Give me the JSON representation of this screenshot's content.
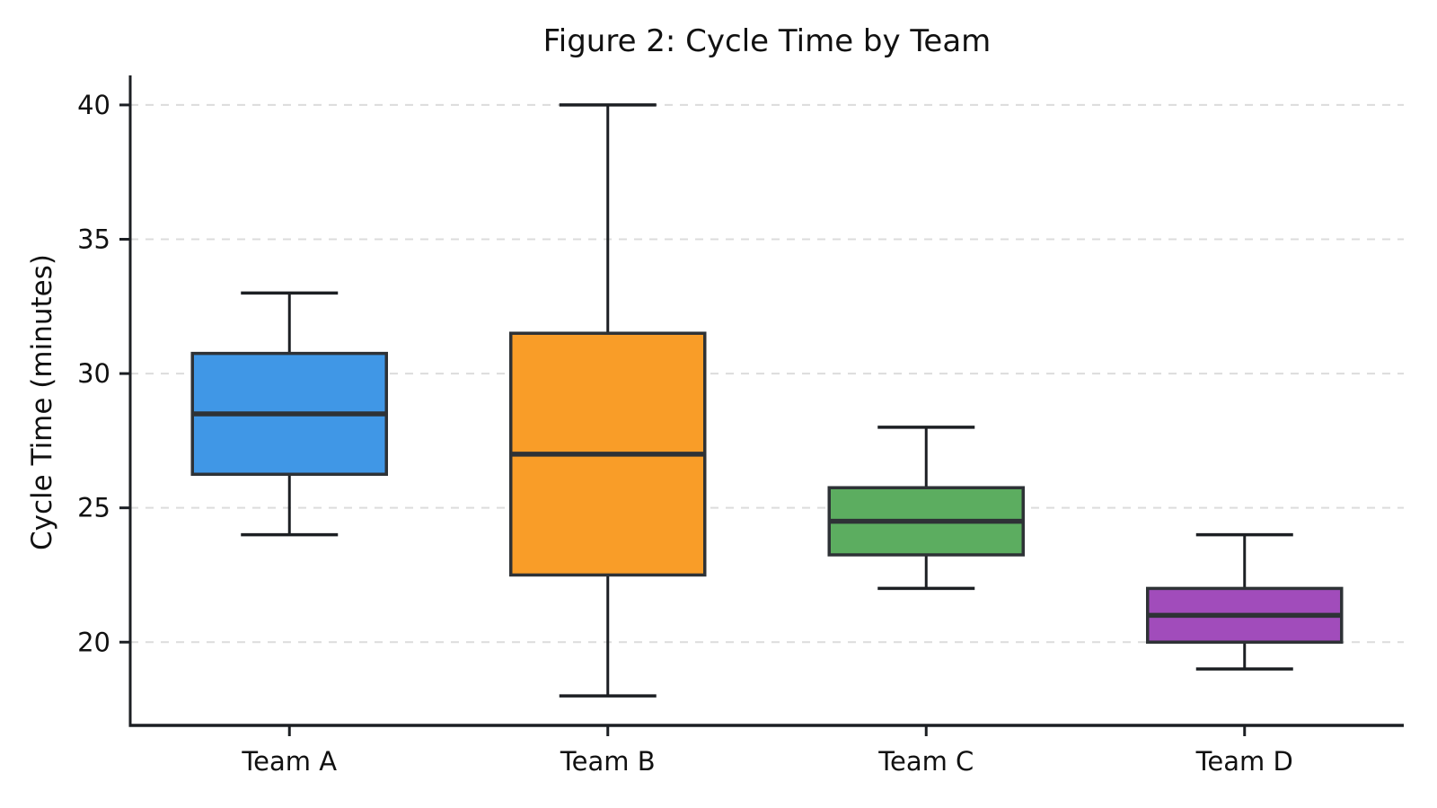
{
  "title": "Figure 2: Cycle Time by Team",
  "chart_data": {
    "type": "boxplot",
    "title": "Figure 2: Cycle Time by Team",
    "xlabel": "",
    "ylabel": "Cycle Time (minutes)",
    "categories": [
      "Team A",
      "Team B",
      "Team C",
      "Team D"
    ],
    "series": [
      {
        "name": "Team A",
        "min": 24,
        "q1": 26.25,
        "median": 28.5,
        "q3": 30.75,
        "max": 33,
        "color": "#4097e6"
      },
      {
        "name": "Team B",
        "min": 18,
        "q1": 22.5,
        "median": 27,
        "q3": 31.5,
        "max": 40,
        "color": "#f99d28"
      },
      {
        "name": "Team C",
        "min": 22,
        "q1": 23.25,
        "median": 24.5,
        "q3": 25.75,
        "max": 28,
        "color": "#5cad60"
      },
      {
        "name": "Team D",
        "min": 19,
        "q1": 20,
        "median": 21,
        "q3": 22,
        "max": 24,
        "color": "#a14cbb"
      }
    ],
    "y_ticks": [
      20,
      25,
      30,
      35,
      40
    ],
    "ylim": [
      16.9,
      41.1
    ],
    "grid": "horizontal-dashed",
    "legend": "none",
    "colors": {
      "grid_color": "#dcdcdc",
      "spine_color": "#1c1f23",
      "whisker_color": "#1c1f23",
      "box_edge_color": "#2e3236",
      "median_color": "#2e3236",
      "text_color": "#111111",
      "background": "#ffffff"
    }
  }
}
